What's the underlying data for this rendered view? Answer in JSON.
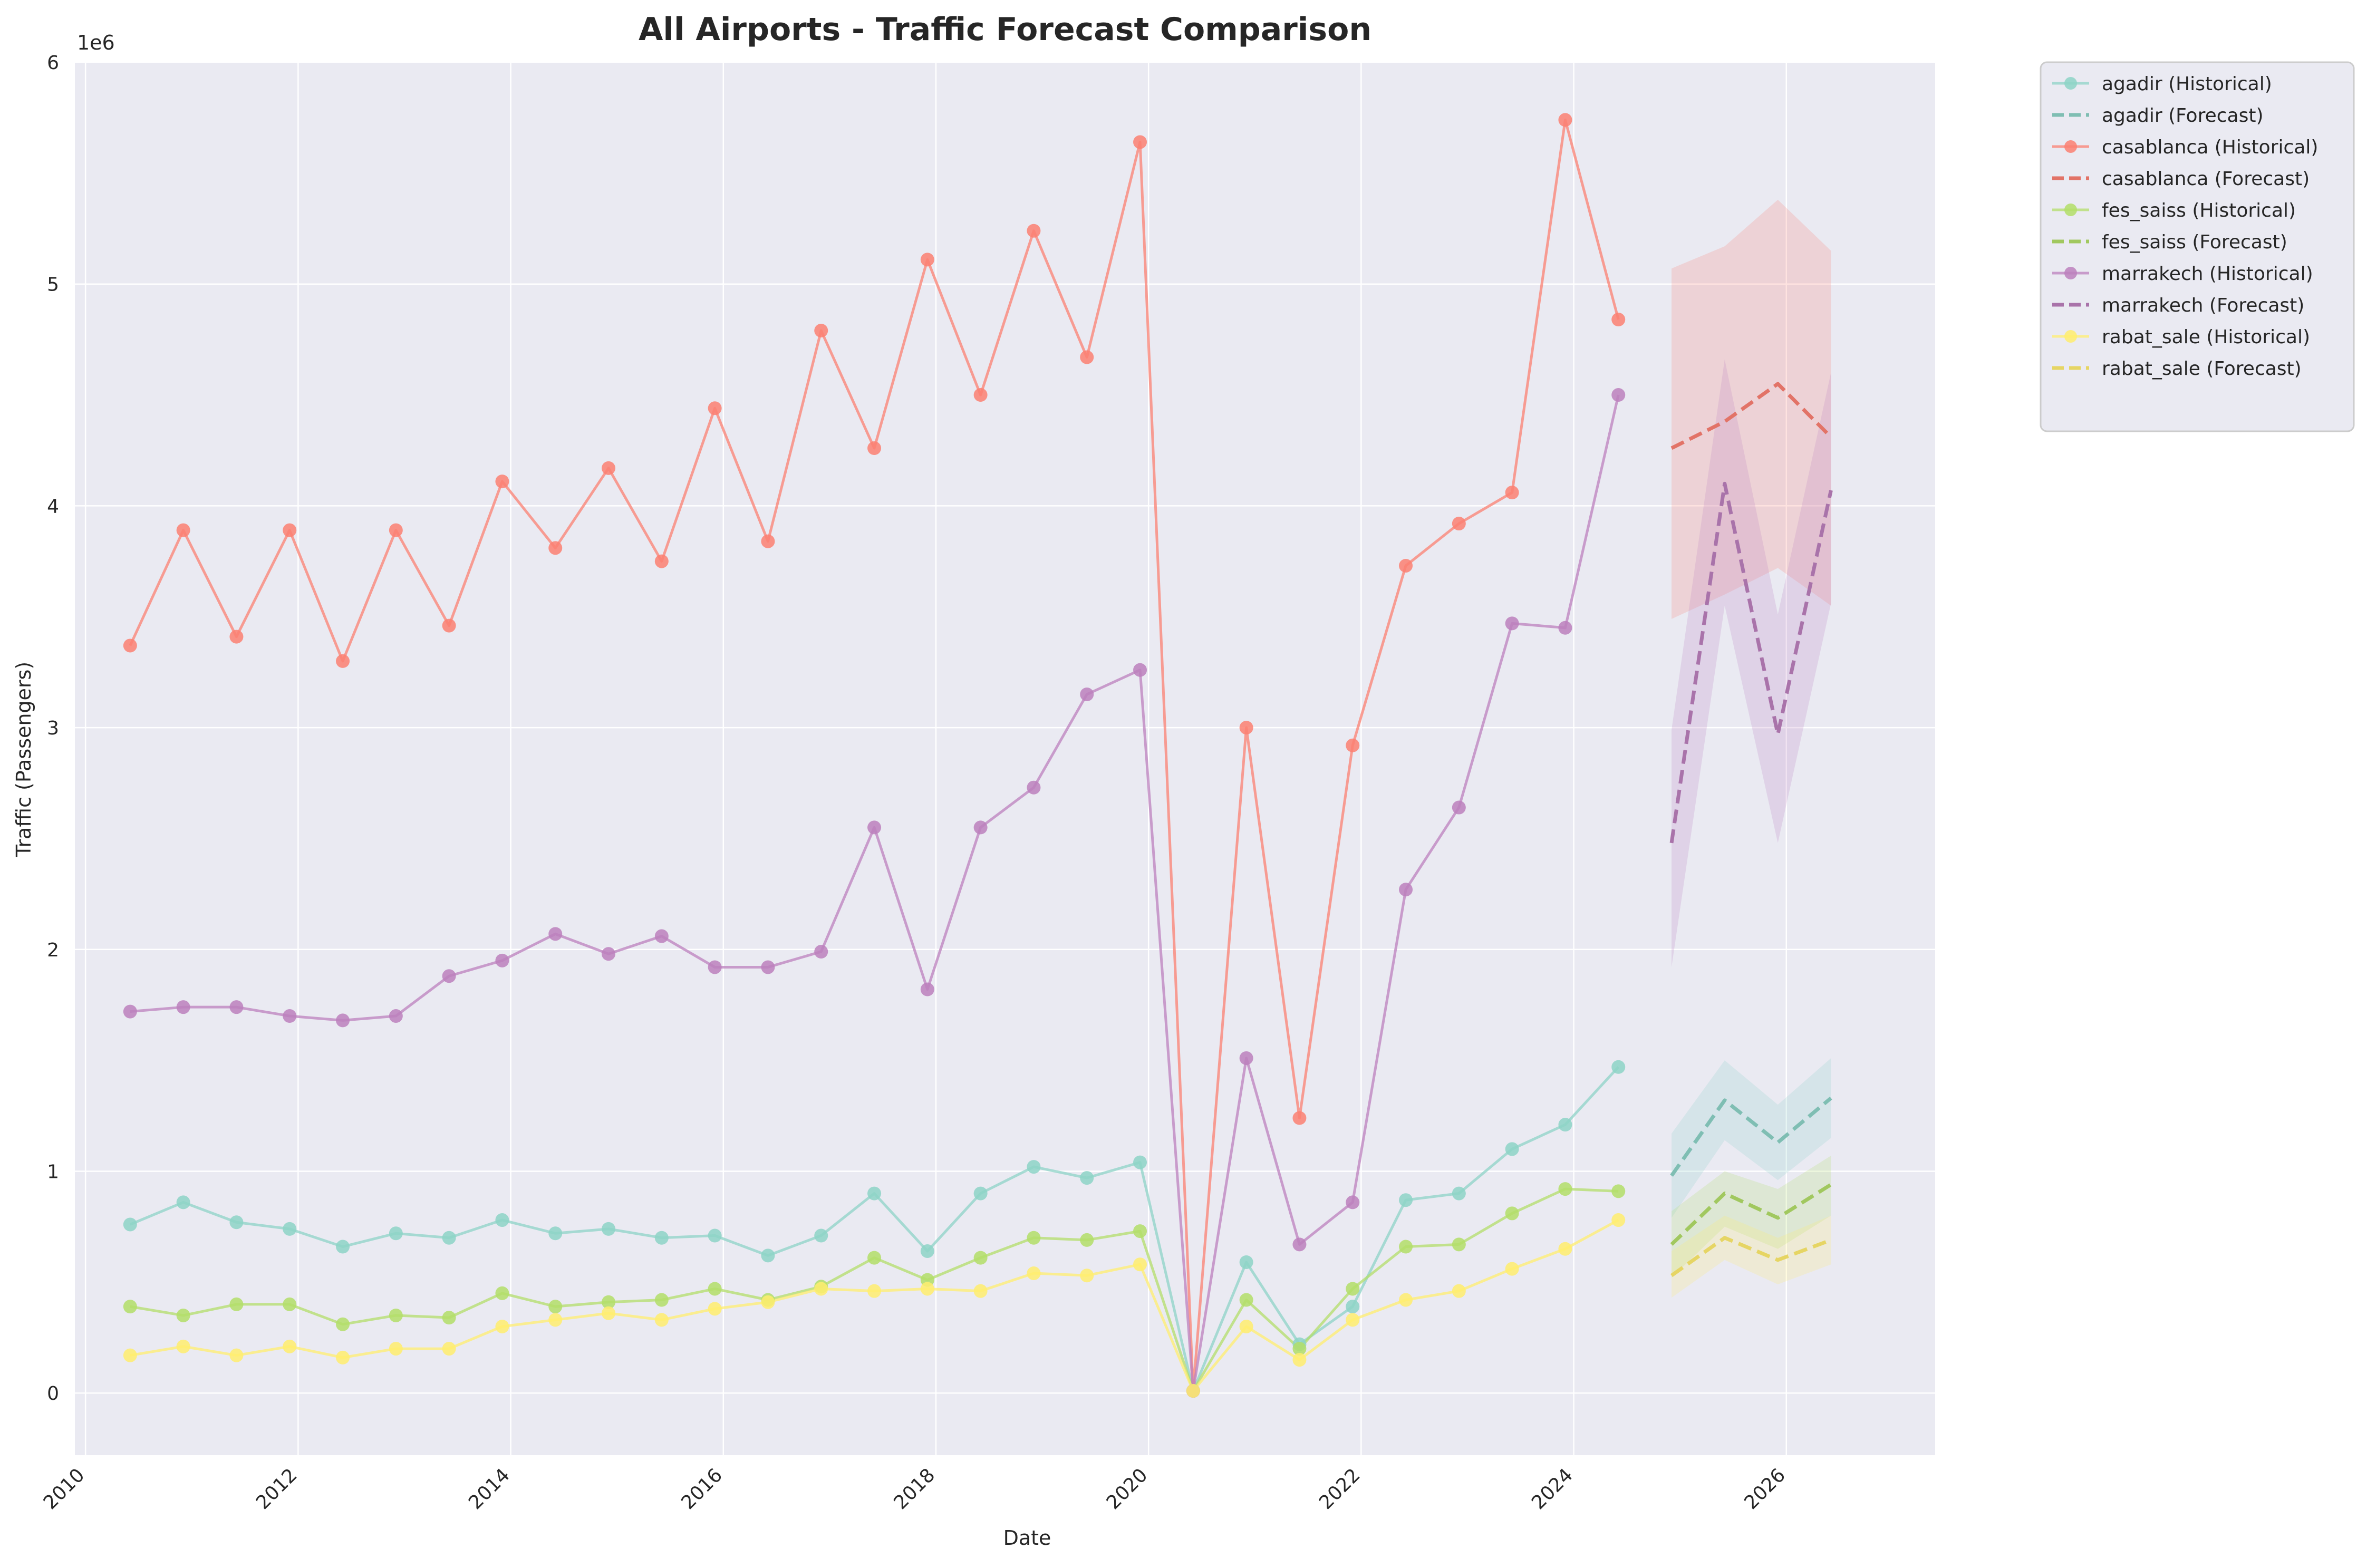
{
  "chart_data": {
    "type": "line",
    "title": "All Airports - Traffic Forecast Comparison",
    "xlabel": "Date",
    "ylabel": "Traffic (Passengers)",
    "y_multiplier_label": "1e6",
    "y_multiplier": 1000000,
    "xlim": [
      2009.9,
      2027.4
    ],
    "ylim": [
      -0.28,
      6.0
    ],
    "x_ticks": [
      2010,
      2012,
      2014,
      2016,
      2018,
      2020,
      2022,
      2024,
      2026
    ],
    "y_ticks": [
      0,
      1,
      2,
      3,
      4,
      5,
      6
    ],
    "grid": true,
    "legend_position": "outside-top-right",
    "historical_x": [
      2010.42,
      2010.92,
      2011.42,
      2011.92,
      2012.42,
      2012.92,
      2013.42,
      2013.92,
      2014.42,
      2014.92,
      2015.42,
      2015.92,
      2016.42,
      2016.92,
      2017.42,
      2017.92,
      2018.42,
      2018.92,
      2019.42,
      2019.92,
      2020.42,
      2020.92,
      2021.42,
      2021.92,
      2022.42,
      2022.92,
      2023.42,
      2023.92,
      2024.42
    ],
    "forecast_x": [
      2024.92,
      2025.42,
      2025.92,
      2026.42
    ],
    "series": [
      {
        "name": "agadir",
        "color": "#8dd3c7",
        "historical": [
          0.76,
          0.86,
          0.77,
          0.74,
          0.66,
          0.72,
          0.7,
          0.78,
          0.72,
          0.74,
          0.7,
          0.71,
          0.62,
          0.71,
          0.9,
          0.64,
          0.9,
          1.02,
          0.97,
          1.04,
          0.01,
          0.59,
          0.22,
          0.39,
          0.87,
          0.9,
          1.1,
          1.21,
          1.47
        ],
        "forecast": [
          0.98,
          1.32,
          1.13,
          1.33
        ],
        "lower": [
          0.79,
          1.14,
          0.96,
          1.15
        ],
        "upper": [
          1.17,
          1.5,
          1.3,
          1.51
        ]
      },
      {
        "name": "casablanca",
        "color": "#fb8072",
        "historical": [
          3.37,
          3.89,
          3.41,
          3.89,
          3.3,
          3.89,
          3.46,
          4.11,
          3.81,
          4.17,
          3.75,
          4.44,
          3.84,
          4.79,
          4.26,
          5.11,
          4.5,
          5.24,
          4.67,
          5.64,
          0.01,
          3.0,
          1.24,
          2.92,
          3.73,
          3.92,
          4.06,
          5.74,
          4.84
        ],
        "forecast": [
          4.26,
          4.38,
          4.55,
          4.31
        ],
        "lower": [
          3.49,
          3.6,
          3.72,
          3.55
        ],
        "upper": [
          5.07,
          5.17,
          5.38,
          5.15
        ]
      },
      {
        "name": "fes_saiss",
        "color": "#b3de69",
        "historical": [
          0.39,
          0.35,
          0.4,
          0.4,
          0.31,
          0.35,
          0.34,
          0.45,
          0.39,
          0.41,
          0.42,
          0.47,
          0.42,
          0.48,
          0.61,
          0.51,
          0.61,
          0.7,
          0.69,
          0.73,
          0.01,
          0.42,
          0.2,
          0.47,
          0.66,
          0.67,
          0.81,
          0.92,
          0.91
        ],
        "forecast": [
          0.67,
          0.9,
          0.79,
          0.94
        ],
        "lower": [
          0.52,
          0.75,
          0.65,
          0.8
        ],
        "upper": [
          0.82,
          1.0,
          0.92,
          1.07
        ]
      },
      {
        "name": "marrakech",
        "color": "#bc80bd",
        "historical": [
          1.72,
          1.74,
          1.74,
          1.7,
          1.68,
          1.7,
          1.88,
          1.95,
          2.07,
          1.98,
          2.06,
          1.92,
          1.92,
          1.99,
          2.55,
          1.82,
          2.55,
          2.73,
          3.15,
          3.26,
          0.01,
          1.51,
          0.67,
          0.86,
          2.27,
          2.64,
          3.47,
          3.45,
          4.5
        ],
        "forecast": [
          2.48,
          4.1,
          2.97,
          4.07
        ],
        "lower": [
          1.92,
          3.55,
          2.48,
          3.56
        ],
        "upper": [
          2.99,
          4.66,
          3.51,
          4.6
        ]
      },
      {
        "name": "rabat_sale",
        "color": "#ffed6f",
        "historical": [
          0.17,
          0.21,
          0.17,
          0.21,
          0.16,
          0.2,
          0.2,
          0.3,
          0.33,
          0.36,
          0.33,
          0.38,
          0.41,
          0.47,
          0.46,
          0.47,
          0.46,
          0.54,
          0.53,
          0.58,
          0.01,
          0.3,
          0.15,
          0.33,
          0.42,
          0.46,
          0.56,
          0.65,
          0.78
        ],
        "forecast": [
          0.53,
          0.7,
          0.6,
          0.69
        ],
        "lower": [
          0.43,
          0.6,
          0.49,
          0.58
        ],
        "upper": [
          0.64,
          0.8,
          0.7,
          0.8
        ]
      }
    ],
    "legend": [
      "agadir (Historical)",
      "agadir (Forecast)",
      "casablanca (Historical)",
      "casablanca (Forecast)",
      "fes_saiss (Historical)",
      "fes_saiss (Forecast)",
      "marrakech (Historical)",
      "marrakech (Forecast)",
      "rabat_sale (Historical)",
      "rabat_sale (Forecast)"
    ]
  }
}
